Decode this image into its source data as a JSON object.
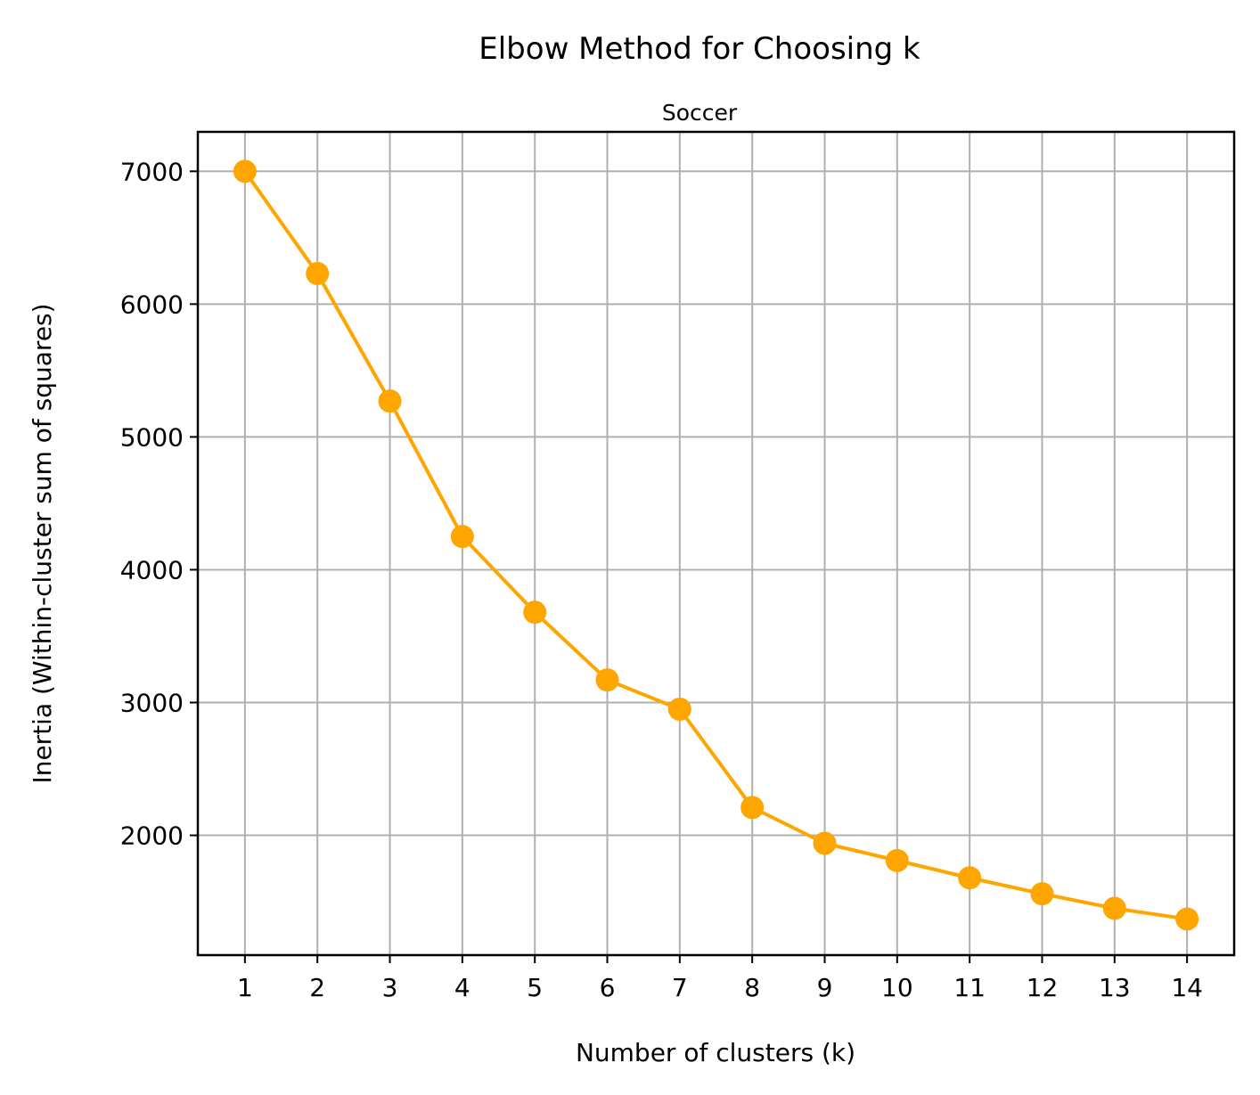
{
  "chart_data": {
    "type": "line",
    "title": "Elbow Method for Choosing k",
    "subtitle": "Soccer",
    "xlabel": "Number of clusters (k)",
    "ylabel": "Inertia (Within-cluster sum of squares)",
    "x": [
      1,
      2,
      3,
      4,
      5,
      6,
      7,
      8,
      9,
      10,
      11,
      12,
      13,
      14
    ],
    "xticks": [
      1,
      2,
      3,
      4,
      5,
      6,
      7,
      8,
      9,
      10,
      11,
      12,
      13,
      14
    ],
    "yticks": [
      2000,
      3000,
      4000,
      5000,
      6000,
      7000
    ],
    "xlim": [
      0.35,
      14.65
    ],
    "ylim": [
      1098,
      7297
    ],
    "grid": true,
    "series": [
      {
        "values": [
          7000,
          6230,
          5270,
          4250,
          3680,
          3170,
          2950,
          2210,
          1940,
          1810,
          1680,
          1560,
          1450,
          1370
        ],
        "color": "#ffa500",
        "marker": "circle"
      }
    ]
  }
}
